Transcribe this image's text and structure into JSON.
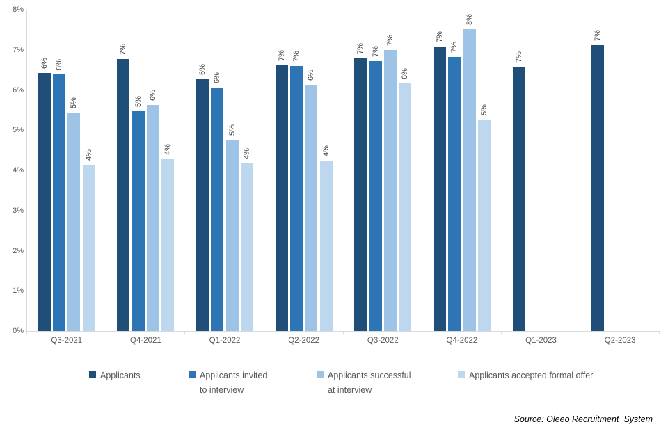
{
  "chart_data": {
    "type": "bar",
    "title": "",
    "categories": [
      "Q3-2021",
      "Q4-2021",
      "Q1-2022",
      "Q2-2022",
      "Q3-2022",
      "Q4-2022",
      "Q1-2023",
      "Q2-2023"
    ],
    "series": [
      {
        "name": "Applicants",
        "color": "#1F4E79",
        "values": [
          6.42,
          6.77,
          6.26,
          6.61,
          6.78,
          7.08,
          6.58,
          7.12
        ],
        "labels": [
          "6%",
          "7%",
          "6%",
          "7%",
          "7%",
          "7%",
          "7%",
          "7%"
        ],
        "legend_lines": [
          "Applicants"
        ]
      },
      {
        "name": "Applicants invited to interview",
        "color": "#2E75B6",
        "values": [
          6.39,
          5.47,
          6.06,
          6.6,
          6.72,
          6.83,
          null,
          null
        ],
        "labels": [
          "6%",
          "5%",
          "6%",
          "7%",
          "7%",
          "7%",
          null,
          null
        ],
        "legend_lines": [
          "Applicants invited",
          "to interview"
        ]
      },
      {
        "name": "Applicants successful at interview",
        "color": "#9DC3E6",
        "values": [
          5.43,
          5.62,
          4.77,
          6.13,
          7.0,
          7.51,
          null,
          null
        ],
        "labels": [
          "5%",
          "6%",
          "5%",
          "6%",
          "7%",
          "8%",
          null,
          null
        ],
        "legend_lines": [
          "Applicants successful",
          "at interview"
        ]
      },
      {
        "name": "Applicants accepted formal offer",
        "color": "#BDD7EE",
        "values": [
          4.14,
          4.28,
          4.18,
          4.25,
          6.16,
          5.27,
          null,
          null
        ],
        "labels": [
          "4%",
          "4%",
          "4%",
          "4%",
          "6%",
          "5%",
          null,
          null
        ],
        "legend_lines": [
          "Applicants accepted formal offer"
        ]
      }
    ],
    "y_axis": {
      "min": 0,
      "max": 8,
      "step": 1,
      "tick_labels": [
        "0%",
        "1%",
        "2%",
        "3%",
        "4%",
        "5%",
        "6%",
        "7%",
        "8%"
      ]
    },
    "grid": false,
    "legend_position": "bottom",
    "data_labels_rotated": true
  },
  "colors": {
    "axis_line": "#D9D9D9",
    "tick_label": "#595959",
    "data_label": "#404040",
    "legend_text": "#595959",
    "background": "#FFFFFF"
  },
  "source_note": "Source: Oleeo Recruitment  System"
}
